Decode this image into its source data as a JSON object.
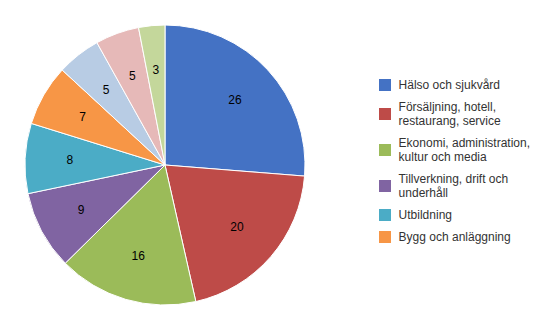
{
  "chart_data": {
    "type": "pie",
    "categories": [
      "Hälso och sjukvård",
      "Försäljning, hotell,\nrestaurang, service",
      "Ekonomi, administration,\nkultur och media",
      "Tillverkning, drift och\nunderhåll",
      "Utbildning",
      "Bygg och anläggning",
      null,
      null,
      null
    ],
    "values": [
      26,
      20,
      16,
      9,
      8,
      7,
      5,
      5,
      3
    ],
    "colors": [
      "#4472C4",
      "#BE4B48",
      "#9BBB59",
      "#8064A2",
      "#4BACC6",
      "#F79646",
      "#B8CCE4",
      "#E6B9B8",
      "#C4D79B"
    ],
    "data_labels": true,
    "legend": "right"
  }
}
